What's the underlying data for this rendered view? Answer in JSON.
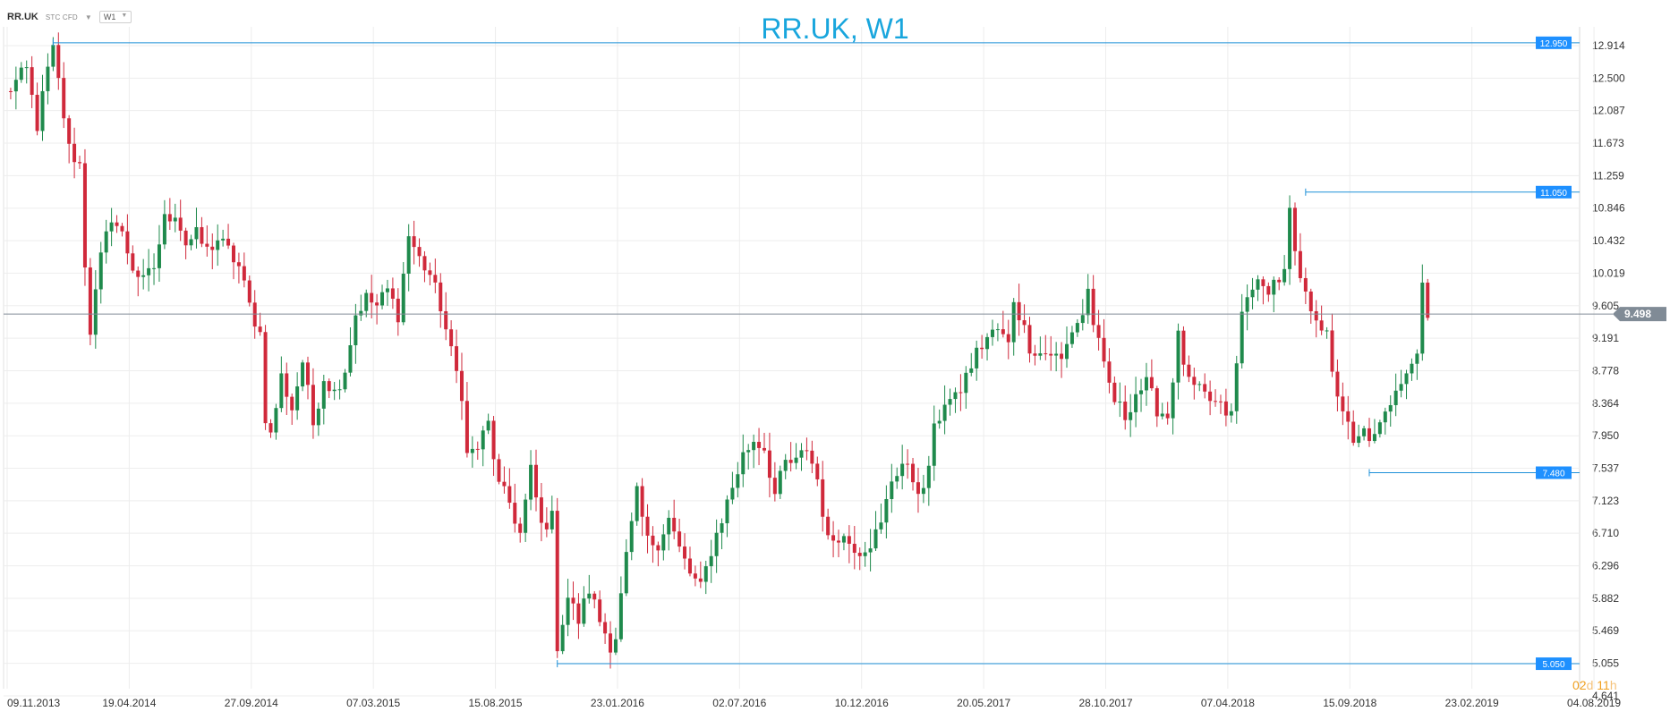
{
  "header": {
    "symbol": "RR.UK",
    "instrument_type": "STC CFD",
    "timeframe": "W1"
  },
  "countdown": {
    "days": "02",
    "days_unit": "d",
    "hours": "11",
    "hours_unit": "h"
  },
  "colors": {
    "bull": "#1f8a4c",
    "bear": "#d0293b",
    "level_line": "#1e90d8",
    "level_badge": "#1e90ff",
    "price_line": "#808b96",
    "grid": "#ededed",
    "title": "#19a6dd"
  },
  "chart_data": {
    "type": "candlestick",
    "title": "RR.UK, W1",
    "y_axis": {
      "min": 4.641,
      "max": 13.2,
      "ticks": [
        12.914,
        12.5,
        12.087,
        11.673,
        11.259,
        10.846,
        10.432,
        10.019,
        9.605,
        9.191,
        8.778,
        8.364,
        7.95,
        7.537,
        7.123,
        6.71,
        6.296,
        5.882,
        5.469,
        5.055,
        4.641
      ],
      "tick_labels": [
        "12.914",
        "12.500",
        "12.087",
        "11.673",
        "11.259",
        "10.846",
        "10.432",
        "10.019",
        "9.605",
        "9.191",
        "8.778",
        "8.364",
        "7.950",
        "7.537",
        "7.123",
        "6.710",
        "6.296",
        "5.882",
        "5.469",
        "5.055",
        "4.641"
      ]
    },
    "x_axis": {
      "tick_labels": [
        "09.11.2013",
        "19.04.2014",
        "27.09.2014",
        "07.03.2015",
        "15.08.2015",
        "23.01.2016",
        "02.07.2016",
        "10.12.2016",
        "20.05.2017",
        "28.10.2017",
        "07.04.2018",
        "15.09.2018",
        "23.02.2019",
        "04.08.2019"
      ],
      "tick_bar_index": [
        0,
        23,
        46,
        69,
        92,
        115,
        138,
        161,
        184,
        207,
        230,
        253,
        276,
        299
      ]
    },
    "current_price": {
      "value": 9.498,
      "label": "9.498"
    },
    "levels": [
      {
        "value": 12.95,
        "label": "12.950",
        "from_bar": 9
      },
      {
        "value": 11.05,
        "label": "11.050",
        "from_bar": 245
      },
      {
        "value": 7.48,
        "label": "7.480",
        "from_bar": 257
      },
      {
        "value": 5.05,
        "label": "5.050",
        "from_bar": 104
      }
    ],
    "anchors": [
      [
        0,
        12.3
      ],
      [
        4,
        12.6
      ],
      [
        6,
        11.9
      ],
      [
        8,
        12.6
      ],
      [
        9,
        12.85
      ],
      [
        10,
        12.45
      ],
      [
        12,
        11.6
      ],
      [
        14,
        11.4
      ],
      [
        15,
        10.15
      ],
      [
        16,
        9.3
      ],
      [
        18,
        10.2
      ],
      [
        20,
        10.75
      ],
      [
        22,
        10.5
      ],
      [
        24,
        10.1
      ],
      [
        26,
        9.9
      ],
      [
        28,
        10.1
      ],
      [
        30,
        10.7
      ],
      [
        32,
        10.8
      ],
      [
        34,
        10.4
      ],
      [
        36,
        10.5
      ],
      [
        38,
        10.3
      ],
      [
        40,
        10.45
      ],
      [
        42,
        10.3
      ],
      [
        44,
        10.1
      ],
      [
        46,
        9.6
      ],
      [
        48,
        9.25
      ],
      [
        49,
        8.2
      ],
      [
        50,
        7.95
      ],
      [
        52,
        8.7
      ],
      [
        54,
        8.3
      ],
      [
        56,
        8.9
      ],
      [
        58,
        8.1
      ],
      [
        60,
        8.7
      ],
      [
        62,
        8.5
      ],
      [
        64,
        8.8
      ],
      [
        66,
        9.5
      ],
      [
        68,
        9.7
      ],
      [
        70,
        9.6
      ],
      [
        72,
        9.8
      ],
      [
        74,
        9.5
      ],
      [
        76,
        10.5
      ],
      [
        78,
        10.2
      ],
      [
        80,
        10.0
      ],
      [
        82,
        9.6
      ],
      [
        84,
        9.0
      ],
      [
        86,
        8.5
      ],
      [
        87,
        7.7
      ],
      [
        89,
        7.8
      ],
      [
        91,
        8.1
      ],
      [
        93,
        7.3
      ],
      [
        95,
        7.1
      ],
      [
        97,
        6.7
      ],
      [
        99,
        7.5
      ],
      [
        101,
        6.8
      ],
      [
        103,
        6.9
      ],
      [
        104,
        5.3
      ],
      [
        106,
        5.9
      ],
      [
        108,
        5.6
      ],
      [
        110,
        6.0
      ],
      [
        112,
        5.6
      ],
      [
        114,
        5.3
      ],
      [
        115,
        5.4
      ],
      [
        117,
        6.4
      ],
      [
        119,
        7.2
      ],
      [
        121,
        6.6
      ],
      [
        123,
        6.6
      ],
      [
        125,
        6.9
      ],
      [
        127,
        6.5
      ],
      [
        129,
        6.2
      ],
      [
        131,
        6.0
      ],
      [
        133,
        6.5
      ],
      [
        135,
        6.9
      ],
      [
        137,
        7.3
      ],
      [
        139,
        7.7
      ],
      [
        141,
        7.9
      ],
      [
        143,
        7.8
      ],
      [
        145,
        7.2
      ],
      [
        147,
        7.6
      ],
      [
        149,
        7.6
      ],
      [
        151,
        7.8
      ],
      [
        153,
        7.4
      ],
      [
        155,
        6.6
      ],
      [
        157,
        6.7
      ],
      [
        159,
        6.6
      ],
      [
        161,
        6.5
      ],
      [
        163,
        6.6
      ],
      [
        165,
        6.8
      ],
      [
        167,
        7.4
      ],
      [
        169,
        7.6
      ],
      [
        171,
        7.4
      ],
      [
        173,
        7.2
      ],
      [
        175,
        8.0
      ],
      [
        177,
        8.4
      ],
      [
        179,
        8.4
      ],
      [
        181,
        8.7
      ],
      [
        183,
        9.0
      ],
      [
        185,
        9.2
      ],
      [
        187,
        9.3
      ],
      [
        189,
        9.1
      ],
      [
        190,
        9.7
      ],
      [
        191,
        9.5
      ],
      [
        193,
        9.1
      ],
      [
        195,
        9.0
      ],
      [
        197,
        9.0
      ],
      [
        199,
        8.9
      ],
      [
        201,
        9.3
      ],
      [
        203,
        9.5
      ],
      [
        204,
        9.8
      ],
      [
        205,
        9.4
      ],
      [
        207,
        8.8
      ],
      [
        209,
        8.4
      ],
      [
        211,
        8.2
      ],
      [
        213,
        8.5
      ],
      [
        215,
        8.6
      ],
      [
        217,
        8.3
      ],
      [
        219,
        8.2
      ],
      [
        221,
        9.2
      ],
      [
        223,
        8.6
      ],
      [
        225,
        8.5
      ],
      [
        227,
        8.4
      ],
      [
        229,
        8.3
      ],
      [
        231,
        8.2
      ],
      [
        233,
        9.5
      ],
      [
        235,
        9.9
      ],
      [
        237,
        9.8
      ],
      [
        239,
        9.9
      ],
      [
        241,
        10.0
      ],
      [
        242,
        10.8
      ],
      [
        243,
        10.2
      ],
      [
        245,
        9.7
      ],
      [
        247,
        9.5
      ],
      [
        249,
        9.2
      ],
      [
        250,
        8.7
      ],
      [
        252,
        8.3
      ],
      [
        254,
        7.8
      ],
      [
        256,
        8.0
      ],
      [
        258,
        7.9
      ],
      [
        260,
        8.2
      ],
      [
        262,
        8.6
      ],
      [
        264,
        8.8
      ],
      [
        266,
        9.0
      ],
      [
        267,
        9.9
      ],
      [
        268,
        9.45
      ]
    ]
  }
}
